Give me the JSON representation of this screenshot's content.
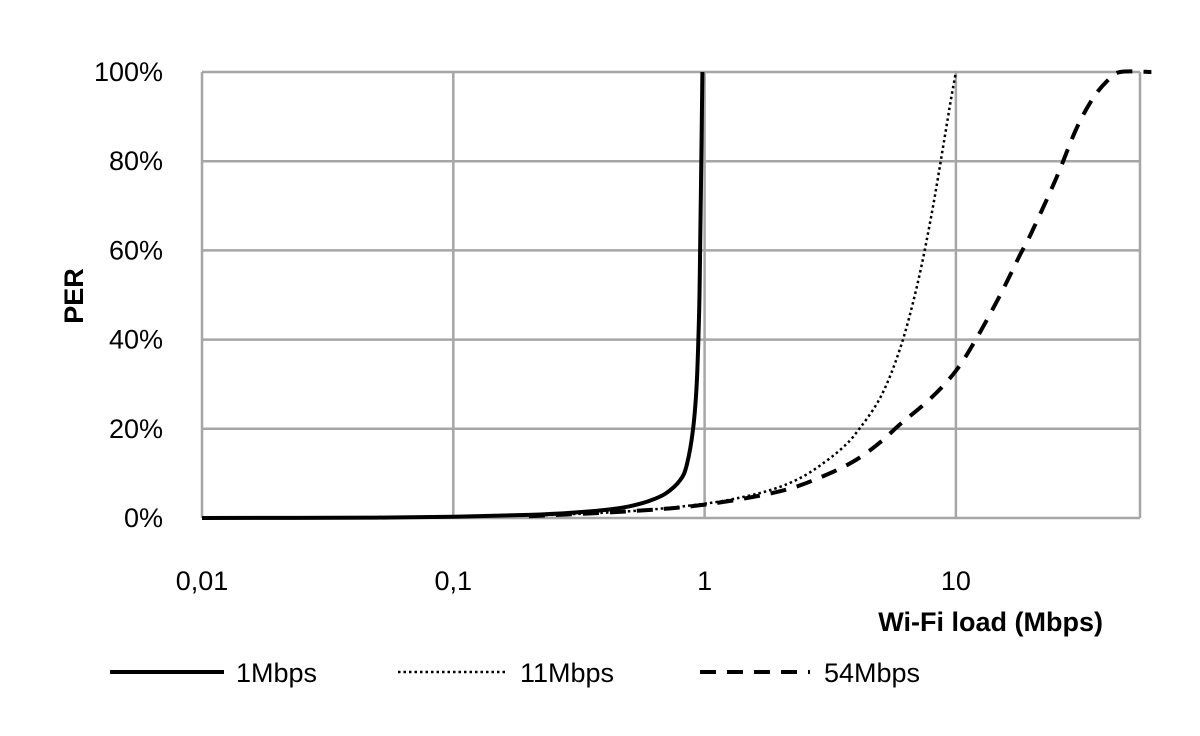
{
  "chart_data": {
    "type": "line",
    "xlabel": "Wi-Fi load (Mbps)",
    "ylabel": "PER",
    "xscale": "log",
    "xlim": [
      0.01,
      60
    ],
    "ylim": [
      0,
      100
    ],
    "x_ticks": [
      {
        "value": 0.01,
        "label": "0,01"
      },
      {
        "value": 0.1,
        "label": "0,1"
      },
      {
        "value": 1,
        "label": "1"
      },
      {
        "value": 10,
        "label": "10"
      }
    ],
    "y_ticks": [
      {
        "value": 0,
        "label": "0%"
      },
      {
        "value": 20,
        "label": "20%"
      },
      {
        "value": 40,
        "label": "40%"
      },
      {
        "value": 60,
        "label": "60%"
      },
      {
        "value": 80,
        "label": "80%"
      },
      {
        "value": 100,
        "label": "100%"
      }
    ],
    "grid": true,
    "legend_position": "bottom",
    "series": [
      {
        "name": "1Mbps",
        "style": "solid",
        "points": [
          [
            0.01,
            0
          ],
          [
            0.05,
            0.1
          ],
          [
            0.1,
            0.3
          ],
          [
            0.2,
            0.7
          ],
          [
            0.3,
            1.2
          ],
          [
            0.4,
            1.8
          ],
          [
            0.5,
            2.6
          ],
          [
            0.6,
            3.8
          ],
          [
            0.7,
            5.5
          ],
          [
            0.8,
            8.5
          ],
          [
            0.85,
            12
          ],
          [
            0.9,
            20
          ],
          [
            0.93,
            30
          ],
          [
            0.95,
            45
          ],
          [
            0.96,
            60
          ],
          [
            0.97,
            80
          ],
          [
            0.98,
            100
          ]
        ]
      },
      {
        "name": "11Mbps",
        "style": "dotted",
        "points": [
          [
            0.2,
            0.5
          ],
          [
            0.5,
            1.5
          ],
          [
            1,
            3.2
          ],
          [
            1.5,
            5
          ],
          [
            2,
            7
          ],
          [
            2.5,
            9.5
          ],
          [
            3,
            12.5
          ],
          [
            3.5,
            15.5
          ],
          [
            4,
            19
          ],
          [
            5,
            27
          ],
          [
            6,
            38
          ],
          [
            7,
            52
          ],
          [
            8,
            68
          ],
          [
            9,
            85
          ],
          [
            9.5,
            93
          ],
          [
            10,
            100
          ]
        ]
      },
      {
        "name": "54Mbps",
        "style": "dashed",
        "points": [
          [
            0.2,
            0.4
          ],
          [
            0.5,
            1.5
          ],
          [
            1,
            3
          ],
          [
            2,
            6
          ],
          [
            3,
            9.5
          ],
          [
            4,
            13
          ],
          [
            5,
            17
          ],
          [
            6,
            21
          ],
          [
            8,
            27
          ],
          [
            10,
            33
          ],
          [
            12,
            40
          ],
          [
            15,
            50
          ],
          [
            18,
            59
          ],
          [
            20,
            64
          ],
          [
            25,
            76
          ],
          [
            30,
            87
          ],
          [
            35,
            94
          ],
          [
            40,
            98
          ],
          [
            45,
            100
          ],
          [
            60,
            100
          ]
        ]
      }
    ]
  },
  "colors": {
    "series": "#000000",
    "grid": "#a6a6a6",
    "background": "#ffffff"
  }
}
